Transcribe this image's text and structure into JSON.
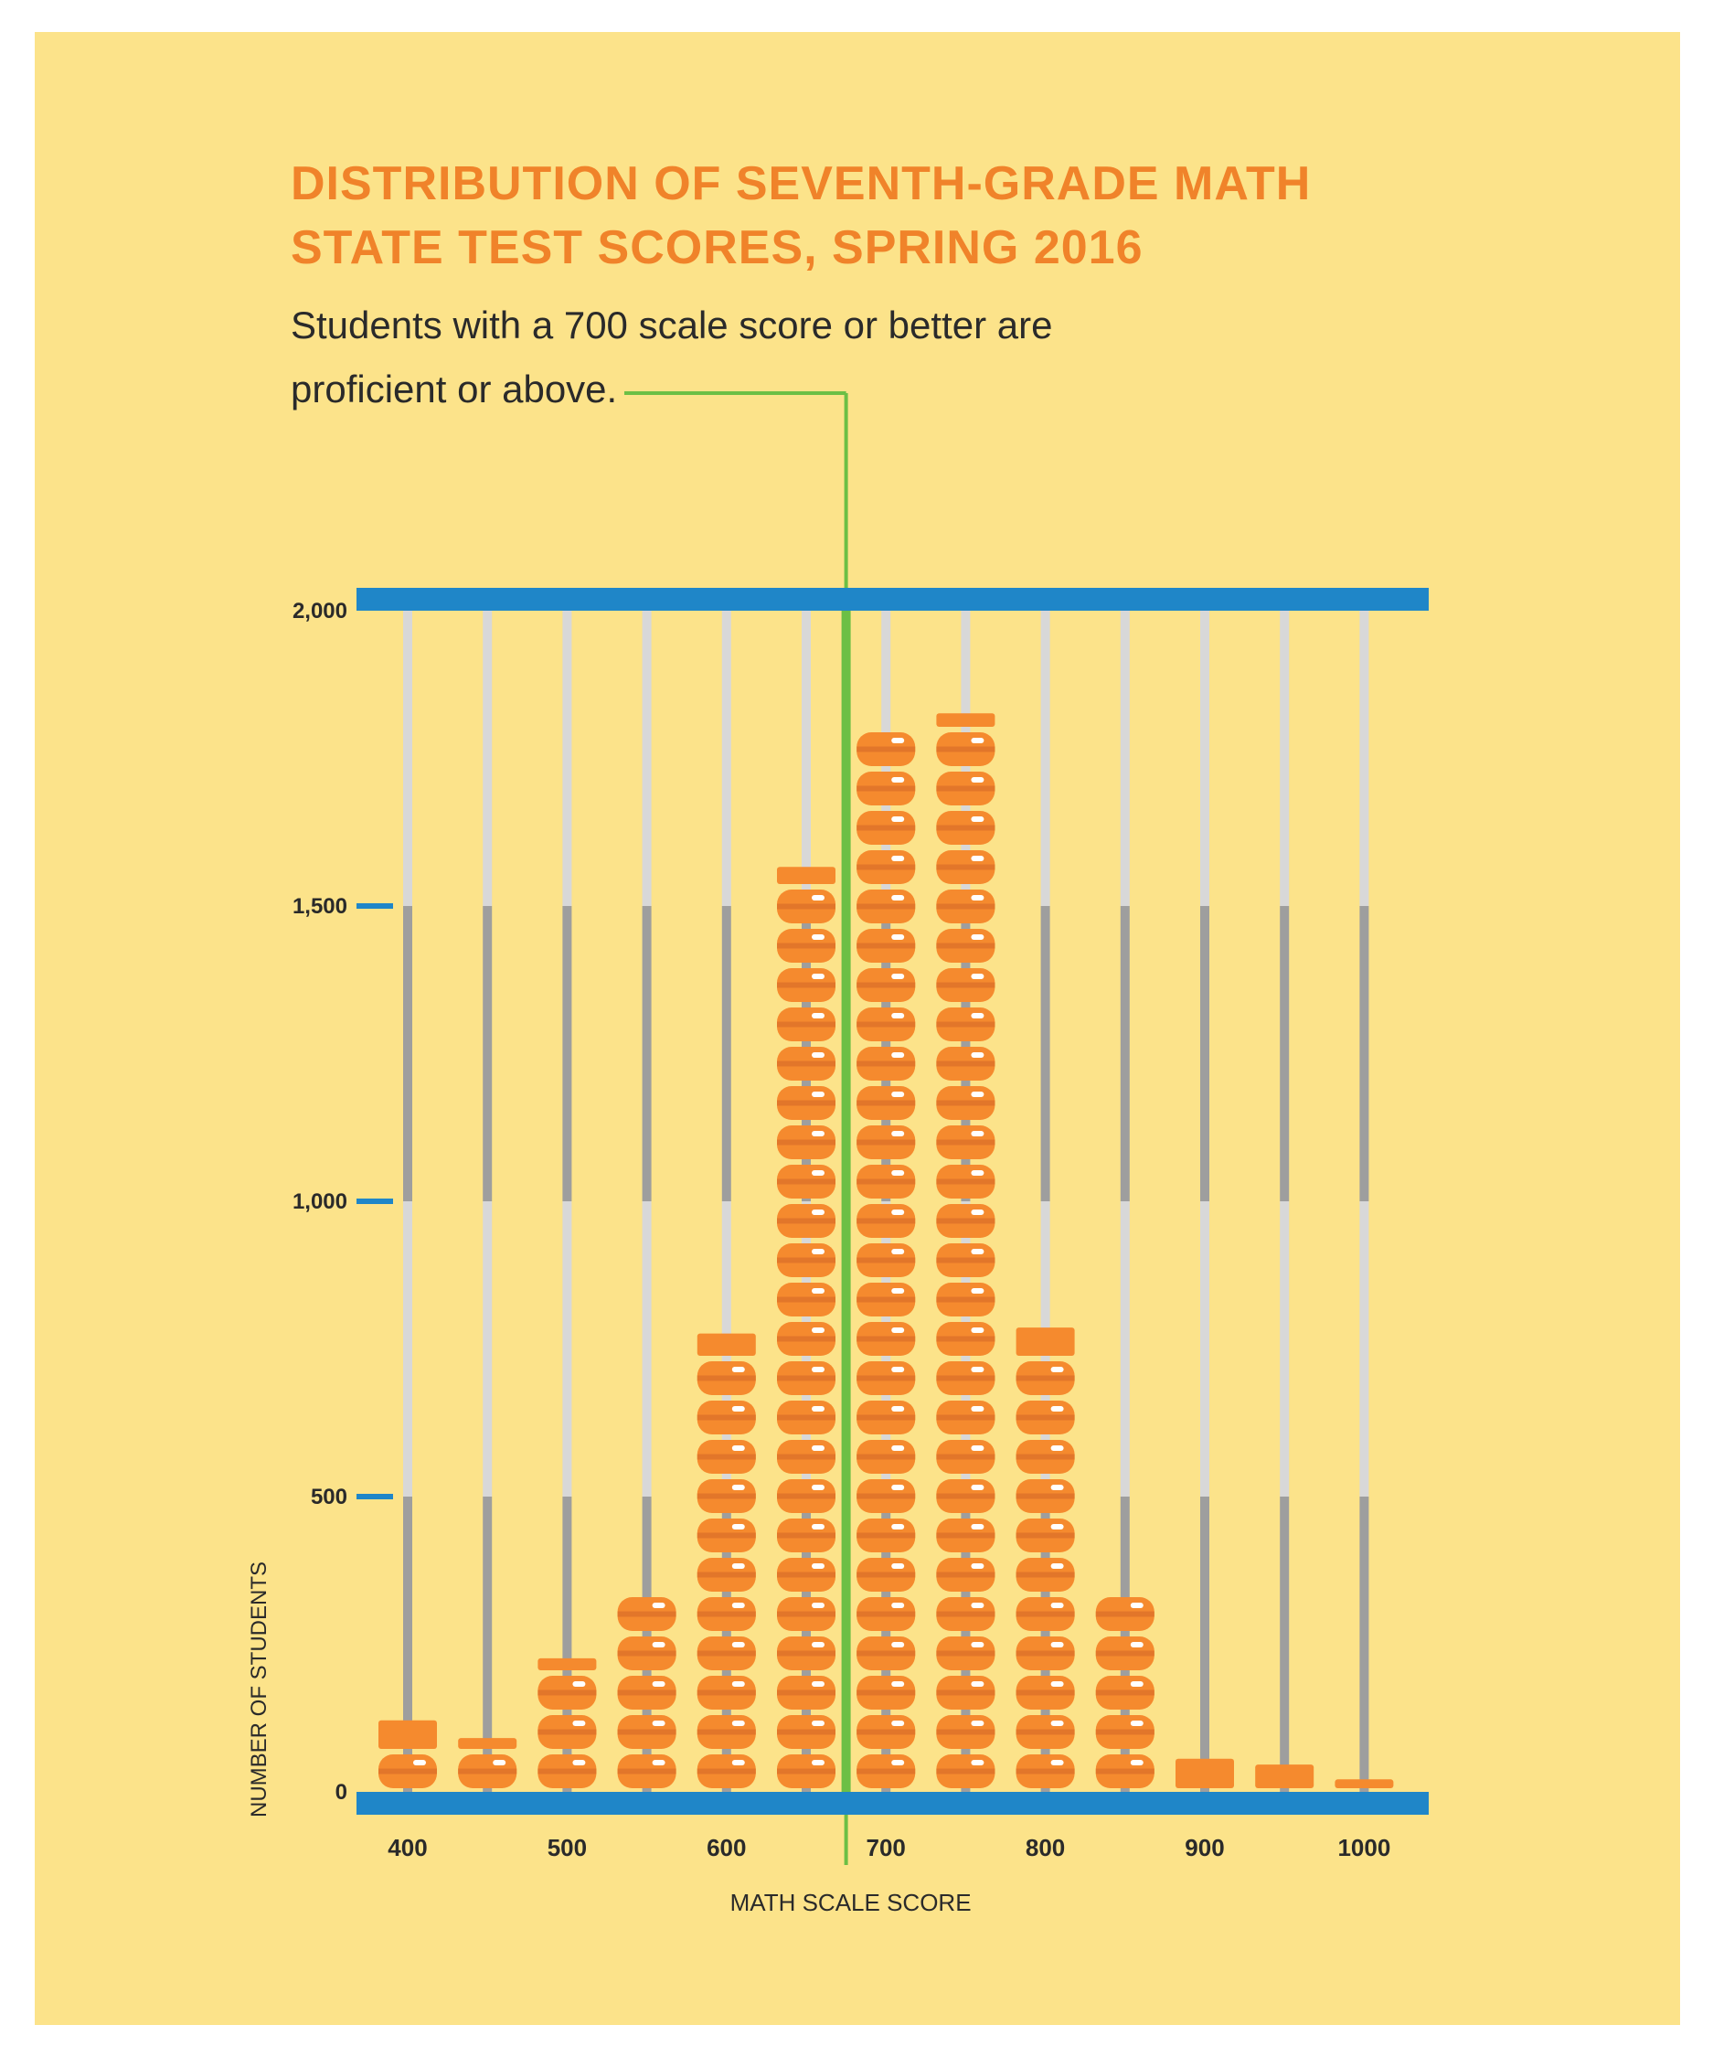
{
  "colors": {
    "background": "#fce38a",
    "frame": "#ffffff",
    "rail": "#1f86c8",
    "bead_light": "#f58a2e",
    "bead_dark": "#e2762a",
    "rod_light": "#d8d8d8",
    "rod_dark": "#9e9e9e",
    "threshold_line": "#6cbf45",
    "title": "#f0832a",
    "text": "#2a2a2a"
  },
  "chart_data": {
    "type": "bar",
    "style": "abacus",
    "title": [
      "DISTRIBUTION OF SEVENTH-GRADE MATH",
      "STATE TEST SCORES, SPRING 2016"
    ],
    "subtitle": [
      "Students with a 700 scale score or better are",
      "proficient or above."
    ],
    "xlabel": "MATH SCALE SCORE",
    "ylabel": "NUMBER OF STUDENTS",
    "x": [
      400,
      450,
      500,
      550,
      600,
      650,
      700,
      750,
      800,
      850,
      900,
      950,
      1000
    ],
    "x_tick_labels": [
      "400",
      "",
      "500",
      "",
      "600",
      "",
      "700",
      "",
      "800",
      "",
      "900",
      "",
      "1000"
    ],
    "values": [
      115,
      85,
      220,
      330,
      770,
      1560,
      1790,
      1820,
      780,
      330,
      50,
      40,
      15
    ],
    "ylim": [
      0,
      2000
    ],
    "y_ticks": [
      0,
      500,
      1000,
      1500,
      2000
    ],
    "y_tick_labels": [
      "0",
      "500",
      "1,000",
      "1,500",
      "2,000"
    ],
    "unit_per_bead": 67,
    "threshold": 675,
    "grid": false,
    "legend": "none"
  }
}
